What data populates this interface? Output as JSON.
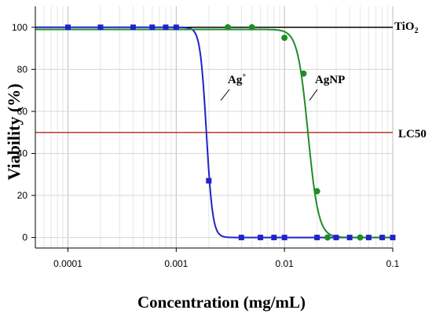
{
  "chart_data": {
    "type": "scatter",
    "xscale": "log",
    "xlim": [
      5e-05,
      0.1
    ],
    "ylim": [
      -5,
      110
    ],
    "xticks": [
      0.0001,
      0.001,
      0.01,
      0.1
    ],
    "xtick_labels": [
      "0.0001",
      "0.001",
      "0.01",
      "0.1"
    ],
    "yticks": [
      0,
      20,
      40,
      60,
      80,
      100
    ],
    "ytick_labels": [
      "0",
      "20",
      "40",
      "60",
      "80",
      "100"
    ],
    "xlabel": "Concentration (mg/mL)",
    "ylabel": "Viability (%)",
    "grid": true,
    "series": [
      {
        "name": "Ag+",
        "label_main": "Ag",
        "label_sup": "+",
        "color": "#1f23c9",
        "marker": "square",
        "points": [
          [
            0.0001,
            100
          ],
          [
            0.0002,
            100
          ],
          [
            0.0004,
            100
          ],
          [
            0.0006,
            100
          ],
          [
            0.0008,
            100
          ],
          [
            0.001,
            100
          ],
          [
            0.002,
            27
          ],
          [
            0.004,
            0
          ],
          [
            0.006,
            0
          ],
          [
            0.008,
            0
          ],
          [
            0.01,
            0
          ],
          [
            0.02,
            0
          ],
          [
            0.03,
            0
          ],
          [
            0.04,
            0
          ],
          [
            0.06,
            0
          ],
          [
            0.08,
            0
          ],
          [
            0.1,
            0
          ]
        ],
        "fit": {
          "top": 100,
          "bottom": 0,
          "ic50": 0.0019,
          "hill": 15
        }
      },
      {
        "name": "AgNP",
        "label_main": "AgNP",
        "label_sup": "",
        "color": "#1e8c28",
        "marker": "circle",
        "points": [
          [
            0.003,
            100
          ],
          [
            0.005,
            100
          ],
          [
            0.01,
            95
          ],
          [
            0.015,
            78
          ],
          [
            0.02,
            22
          ],
          [
            0.025,
            0
          ],
          [
            0.05,
            0
          ]
        ],
        "fit": {
          "top": 99,
          "bottom": 0,
          "ic50": 0.0165,
          "hill": 9
        }
      }
    ],
    "reference_lines": [
      {
        "label_main": "TiO",
        "label_sub": "2",
        "y": 100,
        "color": "#000000"
      },
      {
        "label_main": "LC50",
        "label_sub": "",
        "y": 50,
        "color": "#c0392b"
      }
    ]
  }
}
